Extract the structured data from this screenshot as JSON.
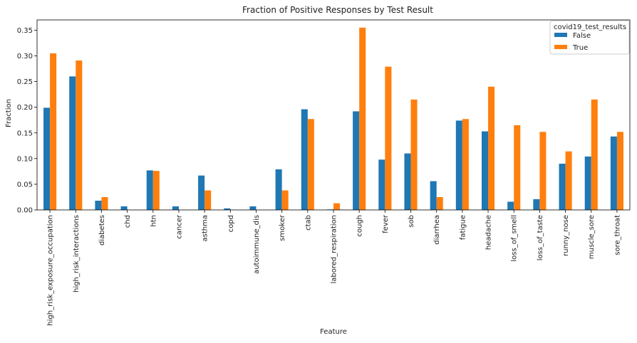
{
  "chart_data": {
    "type": "bar",
    "title": "Fraction of Positive Responses by Test Result",
    "xlabel": "Feature",
    "ylabel": "Fraction",
    "ylim": [
      0,
      0.37
    ],
    "yticks": [
      "0.00",
      "0.05",
      "0.10",
      "0.15",
      "0.20",
      "0.25",
      "0.30",
      "0.35"
    ],
    "grid": false,
    "legend": {
      "title": "covid19_test_results",
      "placement": "top-right"
    },
    "categories": [
      "high_risk_exposure_occupation",
      "high_risk_interactions",
      "diabetes",
      "chd",
      "htn",
      "cancer",
      "asthma",
      "copd",
      "autoimmune_dis",
      "smoker",
      "ctab",
      "labored_respiration",
      "cough",
      "fever",
      "sob",
      "diarrhea",
      "fatigue",
      "headache",
      "loss_of_smell",
      "loss_of_taste",
      "runny_nose",
      "muscle_sore",
      "sore_throat"
    ],
    "series": [
      {
        "name": "False",
        "color": "#1f77b4",
        "values": [
          0.199,
          0.26,
          0.018,
          0.007,
          0.077,
          0.007,
          0.067,
          0.003,
          0.007,
          0.079,
          0.196,
          0.001,
          0.192,
          0.098,
          0.11,
          0.056,
          0.174,
          0.153,
          0.016,
          0.021,
          0.09,
          0.104,
          0.143
        ]
      },
      {
        "name": "True",
        "color": "#ff7f0e",
        "values": [
          0.305,
          0.291,
          0.025,
          0.0,
          0.076,
          0.0,
          0.038,
          0.0,
          0.0,
          0.038,
          0.177,
          0.013,
          0.355,
          0.279,
          0.215,
          0.025,
          0.177,
          0.24,
          0.165,
          0.152,
          0.114,
          0.215,
          0.152
        ]
      }
    ]
  }
}
